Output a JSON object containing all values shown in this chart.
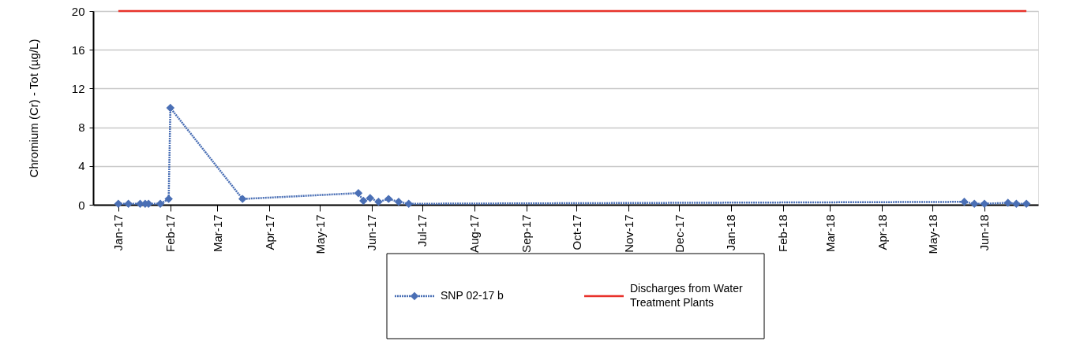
{
  "chart_data": {
    "type": "line",
    "ylabel": "Chromium (Cr) - Tot (µg/L)",
    "xlim": [
      "2016-12-17",
      "2018-07-03"
    ],
    "ylim": [
      0,
      20
    ],
    "yticks": [
      0,
      4,
      8,
      12,
      16,
      20
    ],
    "xticks": [
      {
        "value": "2017-01-01",
        "label": "Jan-17"
      },
      {
        "value": "2017-02-01",
        "label": "Feb-17"
      },
      {
        "value": "2017-03-01",
        "label": "Mar-17"
      },
      {
        "value": "2017-04-01",
        "label": "Apr-17"
      },
      {
        "value": "2017-05-01",
        "label": "May-17"
      },
      {
        "value": "2017-06-01",
        "label": "Jun-17"
      },
      {
        "value": "2017-07-01",
        "label": "Jul-17"
      },
      {
        "value": "2017-08-01",
        "label": "Aug-17"
      },
      {
        "value": "2017-09-01",
        "label": "Sep-17"
      },
      {
        "value": "2017-10-01",
        "label": "Oct-17"
      },
      {
        "value": "2017-11-01",
        "label": "Nov-17"
      },
      {
        "value": "2017-12-01",
        "label": "Dec-17"
      },
      {
        "value": "2018-01-01",
        "label": "Jan-18"
      },
      {
        "value": "2018-02-01",
        "label": "Feb-18"
      },
      {
        "value": "2018-03-01",
        "label": "Mar-18"
      },
      {
        "value": "2018-04-01",
        "label": "Apr-18"
      },
      {
        "value": "2018-05-01",
        "label": "May-18"
      },
      {
        "value": "2018-06-01",
        "label": "Jun-18"
      }
    ],
    "grid": "y",
    "legend": "bottom",
    "series": [
      {
        "name": "SNP 02-17 b",
        "color": "#4a6fb5",
        "marker": "diamond",
        "line_style": "dotted",
        "x": [
          "2017-01-01",
          "2017-01-07",
          "2017-01-14",
          "2017-01-17",
          "2017-01-19",
          "2017-01-26",
          "2017-01-31",
          "2017-02-01",
          "2017-03-16",
          "2017-05-24",
          "2017-05-27",
          "2017-05-31",
          "2017-06-05",
          "2017-06-11",
          "2017-06-17",
          "2017-06-23",
          "2018-05-20",
          "2018-05-26",
          "2018-06-01",
          "2018-06-15",
          "2018-06-20",
          "2018-06-26"
        ],
        "values": [
          0.1,
          0.1,
          0.1,
          0.1,
          0.1,
          0.1,
          0.6,
          10.0,
          0.6,
          1.2,
          0.4,
          0.7,
          0.3,
          0.6,
          0.3,
          0.1,
          0.3,
          0.1,
          0.1,
          0.2,
          0.1,
          0.1
        ]
      },
      {
        "name": "Discharges from Water Treatment Plants",
        "color": "#e8322b",
        "marker": "none",
        "line_style": "solid",
        "x": [
          "2017-01-01",
          "2018-06-26"
        ],
        "values": [
          20,
          20
        ]
      }
    ]
  }
}
